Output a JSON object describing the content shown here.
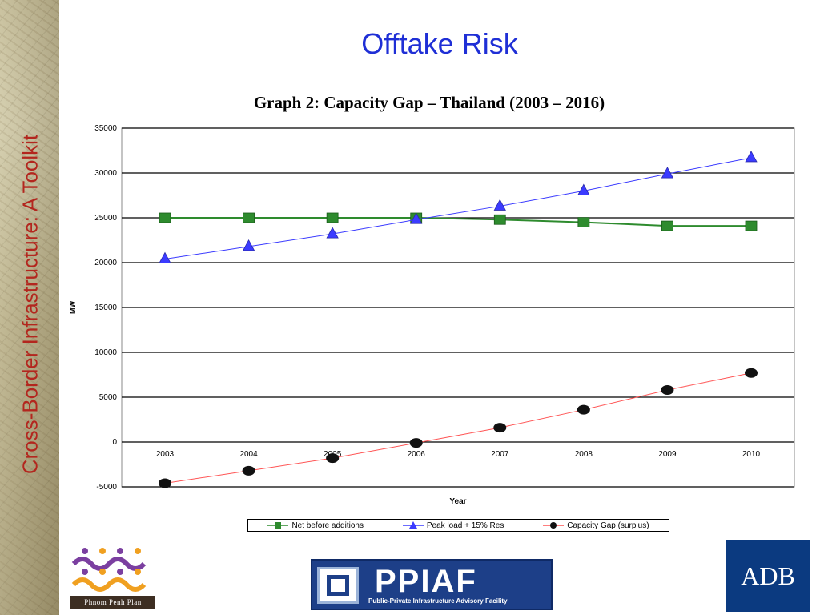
{
  "slide": {
    "title": "Offtake Risk",
    "side_title": "Cross-Border Infrastructure: A Toolkit"
  },
  "logos": {
    "ppp_caption": "Phnom Penh Plan",
    "ppiaf_name": "PPIAF",
    "ppiaf_subtitle": "Public-Private Infrastructure Advisory Facility",
    "adb_name": "ADB"
  },
  "chart_data": {
    "type": "line",
    "title": "Graph 2:  Capacity Gap – Thailand (2003 – 2016)",
    "xlabel": "Year",
    "ylabel": "MW",
    "categories": [
      "2003",
      "2004",
      "2005",
      "2006",
      "2007",
      "2008",
      "2009",
      "2010"
    ],
    "ylim": [
      -5000,
      35000
    ],
    "yticks": [
      35000,
      30000,
      25000,
      20000,
      15000,
      10000,
      5000,
      0,
      -5000
    ],
    "grid": true,
    "legend_position": "bottom",
    "series": [
      {
        "name": "Net before additions",
        "values": [
          25000,
          25000,
          25000,
          25000,
          24800,
          24500,
          24100,
          24100
        ],
        "color": "#2e8b2e",
        "marker": "square"
      },
      {
        "name": "Peak load + 15% Res",
        "values": [
          20400,
          21800,
          23200,
          24800,
          26300,
          28000,
          29900,
          31700
        ],
        "color": "#3b3bff",
        "marker": "triangle"
      },
      {
        "name": "Capacity Gap (surplus)",
        "values": [
          -4600,
          -3200,
          -1800,
          -100,
          1600,
          3600,
          5800,
          7700
        ],
        "color": "#ff5555",
        "marker": "circle"
      }
    ]
  }
}
